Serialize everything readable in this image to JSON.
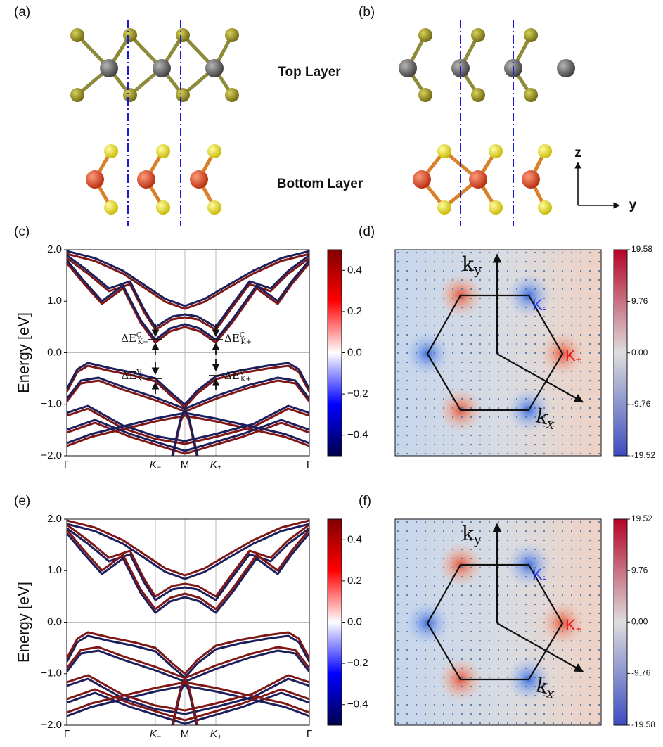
{
  "structure": {
    "panels": [
      "(a)",
      "(b)"
    ],
    "top_layer": "Top Layer",
    "bottom_layer": "Bottom Layer",
    "axis_z": "z",
    "axis_y": "y"
  },
  "bands": [
    {
      "label": "(c)",
      "ylabel": "Energy [eV]",
      "ylim": [
        -2,
        2
      ],
      "yticks": [
        {
          "value": -2,
          "label": "−2.0"
        },
        {
          "value": -1,
          "label": "−1.0"
        },
        {
          "value": 0,
          "label": "0.0"
        },
        {
          "value": 1,
          "label": "1.0"
        },
        {
          "value": 2,
          "label": "2.0"
        }
      ],
      "xticks": [
        {
          "base": "Γ"
        },
        {
          "base": "K",
          "sub": "−"
        },
        {
          "base": "M"
        },
        {
          "base": "K",
          "sub": "+"
        },
        {
          "base": "Γ"
        }
      ],
      "clim": [
        -0.5,
        0.5
      ],
      "cticks": [
        {
          "value": -0.4,
          "label": "−0.4"
        },
        {
          "value": -0.2,
          "label": "−0.2"
        },
        {
          "value": 0,
          "label": "0.0"
        },
        0.2,
        0.4
      ],
      "annotations": [
        {
          "base": "ΔE",
          "sup": "C",
          "sub": "K−"
        },
        {
          "base": "ΔE",
          "sup": "C",
          "sub": "K+"
        },
        {
          "base": "ΔE",
          "sup": "V",
          "sub": "K−"
        },
        {
          "base": "ΔE",
          "sup": "V",
          "sub": "K+"
        }
      ]
    },
    {
      "label": "(e)",
      "ylabel": "Energy [eV]",
      "ylim": [
        -2,
        2
      ],
      "yticks": [
        {
          "value": -2,
          "label": "−2.0"
        },
        {
          "value": -1,
          "label": "−1.0"
        },
        {
          "value": 0,
          "label": "0.0"
        },
        {
          "value": 1,
          "label": "1.0"
        },
        {
          "value": 2,
          "label": "2.0"
        }
      ],
      "xticks": [
        {
          "base": "Γ"
        },
        {
          "base": "K",
          "sub": "−"
        },
        {
          "base": "M"
        },
        {
          "base": "K",
          "sub": "+"
        },
        {
          "base": "Γ"
        }
      ],
      "clim": [
        -0.5,
        0.5
      ],
      "cticks": [
        {
          "value": -0.4,
          "label": "−0.4"
        },
        {
          "value": -0.2,
          "label": "−0.2"
        },
        {
          "value": 0,
          "label": "0.0"
        },
        0.2,
        0.4
      ]
    }
  ],
  "berry": [
    {
      "label": "(d)",
      "clim": [
        -19.52,
        19.58
      ],
      "cticks": [
        19.58,
        9.76,
        {
          "value": 0,
          "label": "0.00"
        },
        -9.76,
        -19.52
      ],
      "kx": {
        "base": "k",
        "sub": "x"
      },
      "ky": {
        "base": "k",
        "sub": "y"
      },
      "k_minus": {
        "base": "K",
        "sub": "-"
      },
      "k_plus": {
        "base": "K",
        "sub": "+"
      }
    },
    {
      "label": "(f)",
      "clim": [
        -19.58,
        19.52
      ],
      "cticks": [
        19.52,
        9.76,
        {
          "value": 0,
          "label": "0.00"
        },
        -9.76,
        -19.58
      ],
      "kx": {
        "base": "k",
        "sub": "x"
      },
      "ky": {
        "base": "k",
        "sub": "y"
      },
      "k_minus": {
        "base": "K",
        "sub": "-"
      },
      "k_plus": {
        "base": "K",
        "sub": "+"
      }
    }
  ]
}
